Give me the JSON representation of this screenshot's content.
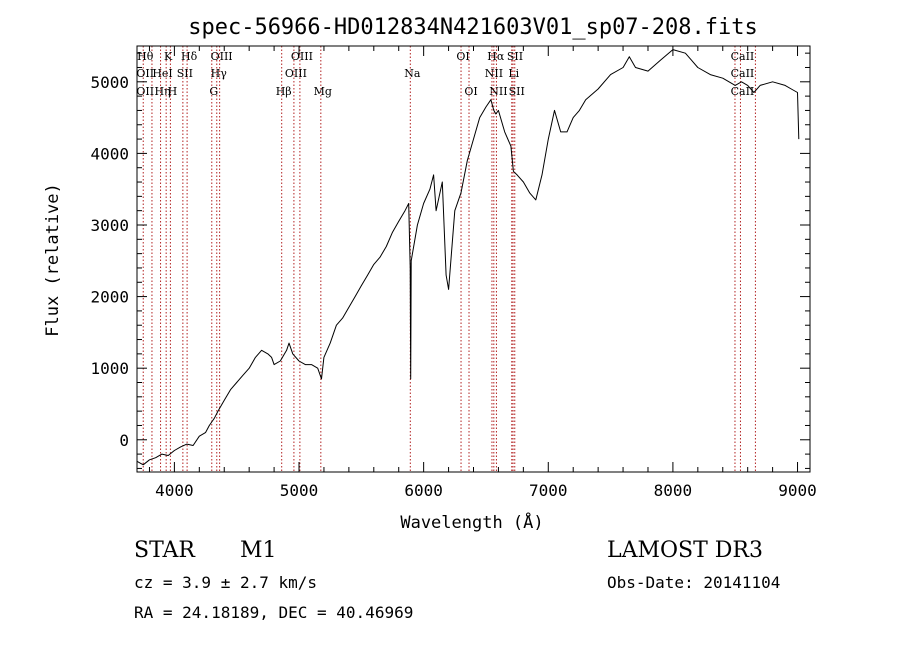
{
  "chart_data": {
    "type": "line",
    "title": "spec-56966-HD012834N421603V01_sp07-208.fits",
    "xlabel": "Wavelength (Å)",
    "ylabel": "Flux (relative)",
    "xlim": [
      3700,
      9100
    ],
    "ylim": [
      -450,
      5500
    ],
    "xticks": [
      4000,
      5000,
      6000,
      7000,
      8000,
      9000
    ],
    "yticks": [
      0,
      1000,
      2000,
      3000,
      4000,
      5000
    ],
    "grid": false,
    "series": [
      {
        "name": "flux",
        "x": [
          3700,
          3750,
          3800,
          3850,
          3900,
          3950,
          4000,
          4050,
          4100,
          4150,
          4200,
          4250,
          4280,
          4300,
          4320,
          4350,
          4400,
          4450,
          4500,
          4550,
          4600,
          4650,
          4700,
          4750,
          4780,
          4800,
          4850,
          4900,
          4920,
          4950,
          5000,
          5050,
          5100,
          5150,
          5180,
          5200,
          5250,
          5300,
          5350,
          5400,
          5450,
          5500,
          5550,
          5600,
          5650,
          5700,
          5750,
          5800,
          5850,
          5880,
          5892,
          5896,
          5900,
          5950,
          6000,
          6050,
          6080,
          6100,
          6150,
          6180,
          6200,
          6250,
          6300,
          6350,
          6400,
          6450,
          6500,
          6540,
          6563,
          6580,
          6600,
          6650,
          6700,
          6720,
          6750,
          6800,
          6850,
          6900,
          6950,
          7000,
          7050,
          7100,
          7150,
          7200,
          7250,
          7300,
          7400,
          7500,
          7600,
          7650,
          7700,
          7800,
          7900,
          8000,
          8100,
          8150,
          8200,
          8300,
          8400,
          8500,
          8550,
          8600,
          8650,
          8700,
          8800,
          8900,
          8950,
          9000,
          9010
        ],
        "y": [
          -300,
          -350,
          -280,
          -250,
          -200,
          -220,
          -150,
          -100,
          -60,
          -80,
          50,
          100,
          200,
          250,
          300,
          400,
          550,
          700,
          800,
          900,
          1000,
          1150,
          1250,
          1200,
          1150,
          1050,
          1100,
          1250,
          1350,
          1200,
          1100,
          1050,
          1050,
          1000,
          850,
          1150,
          1350,
          1600,
          1700,
          1850,
          2000,
          2150,
          2300,
          2450,
          2550,
          2700,
          2900,
          3050,
          3200,
          3300,
          2400,
          850,
          2500,
          3000,
          3300,
          3500,
          3700,
          3200,
          3600,
          2300,
          2100,
          3200,
          3450,
          3900,
          4200,
          4500,
          4650,
          4750,
          4600,
          4550,
          4600,
          4300,
          4100,
          3750,
          3700,
          3600,
          3450,
          3350,
          3700,
          4200,
          4600,
          4300,
          4300,
          4500,
          4600,
          4750,
          4900,
          5100,
          5200,
          5350,
          5200,
          5150,
          5300,
          5450,
          5400,
          5300,
          5200,
          5100,
          5050,
          4950,
          5000,
          4950,
          4850,
          4950,
          5000,
          4950,
          4900,
          4850,
          4200
        ]
      }
    ],
    "lines": [
      {
        "x": 3750,
        "labels": [
          "Hθ",
          "OII",
          "OII"
        ]
      },
      {
        "x": 3820,
        "labels": [
          "",
          "",
          ""
        ]
      },
      {
        "x": 3889,
        "labels": [
          "",
          "HeI",
          "Hη"
        ]
      },
      {
        "x": 3934,
        "labels": [
          "K",
          "",
          ""
        ]
      },
      {
        "x": 3968,
        "labels": [
          "",
          "",
          "H"
        ]
      },
      {
        "x": 4068,
        "labels": [
          "",
          "SII",
          ""
        ]
      },
      {
        "x": 4102,
        "labels": [
          "Hδ",
          "",
          ""
        ]
      },
      {
        "x": 4300,
        "labels": [
          "",
          "",
          "G"
        ]
      },
      {
        "x": 4340,
        "labels": [
          "",
          "Hγ",
          ""
        ]
      },
      {
        "x": 4363,
        "labels": [
          "OIII",
          "",
          ""
        ]
      },
      {
        "x": 4861,
        "labels": [
          "",
          "",
          "Hβ"
        ]
      },
      {
        "x": 4959,
        "labels": [
          "",
          "OIII",
          ""
        ]
      },
      {
        "x": 5007,
        "labels": [
          "OIII",
          "",
          ""
        ]
      },
      {
        "x": 5175,
        "labels": [
          "",
          "",
          "Mg"
        ]
      },
      {
        "x": 5893,
        "labels": [
          "",
          "Na",
          ""
        ]
      },
      {
        "x": 6300,
        "labels": [
          "OI",
          "",
          ""
        ]
      },
      {
        "x": 6364,
        "labels": [
          "",
          "",
          "OI"
        ]
      },
      {
        "x": 6548,
        "labels": [
          "",
          "NII",
          ""
        ]
      },
      {
        "x": 6563,
        "labels": [
          "Hα",
          "",
          ""
        ]
      },
      {
        "x": 6584,
        "labels": [
          "",
          "",
          "NII"
        ]
      },
      {
        "x": 6707,
        "labels": [
          "",
          "Li",
          ""
        ]
      },
      {
        "x": 6717,
        "labels": [
          "SII",
          "",
          ""
        ]
      },
      {
        "x": 6731,
        "labels": [
          "",
          "",
          "SII"
        ]
      },
      {
        "x": 8498,
        "labels": [
          "",
          "",
          ""
        ]
      },
      {
        "x": 8542,
        "labels": [
          "CaII",
          "CaII",
          "CaII"
        ]
      },
      {
        "x": 8662,
        "labels": [
          "",
          "",
          ""
        ]
      }
    ]
  },
  "info": {
    "object_class": "STAR",
    "subclass": "M1",
    "survey": "LAMOST DR3",
    "cz": "cz = 3.9 ± 2.7 km/s",
    "obs_date": "Obs-Date: 20141104",
    "coords": "RA =  24.18189, DEC =  40.46969"
  },
  "colors": {
    "axis": "#000000",
    "spectrum": "#000000",
    "line_marker": "#b22222"
  }
}
